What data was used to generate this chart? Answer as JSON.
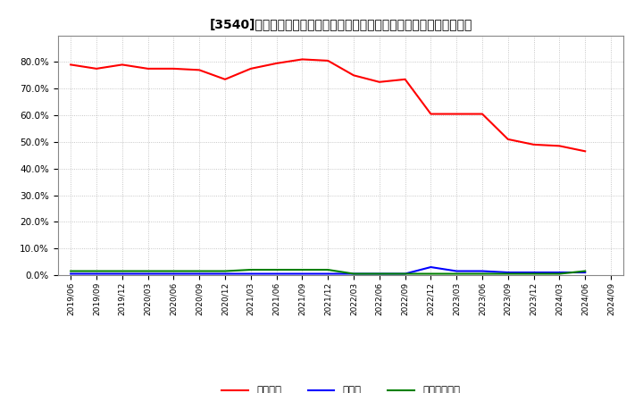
{
  "title": "[3540]　自己資本、のれん、繰延税金資産の総資産に対する比率の推移",
  "x_labels": [
    "2019/06",
    "2019/09",
    "2019/12",
    "2020/03",
    "2020/06",
    "2020/09",
    "2020/12",
    "2021/03",
    "2021/06",
    "2021/09",
    "2021/12",
    "2022/03",
    "2022/06",
    "2022/09",
    "2022/12",
    "2023/03",
    "2023/06",
    "2023/09",
    "2023/12",
    "2024/03",
    "2024/06",
    "2024/09"
  ],
  "equity_ratio": [
    79.0,
    77.5,
    79.0,
    77.5,
    77.5,
    77.0,
    73.5,
    77.5,
    79.5,
    81.0,
    80.5,
    75.0,
    72.5,
    73.5,
    60.5,
    60.5,
    60.5,
    51.0,
    49.0,
    48.5,
    46.5,
    null
  ],
  "noren_ratio": [
    0.5,
    0.5,
    0.5,
    0.5,
    0.5,
    0.5,
    0.5,
    0.5,
    0.5,
    0.5,
    0.5,
    0.5,
    0.5,
    0.5,
    3.0,
    1.5,
    1.5,
    1.0,
    1.0,
    1.0,
    1.0,
    null
  ],
  "deferred_tax_ratio": [
    1.5,
    1.5,
    1.5,
    1.5,
    1.5,
    1.5,
    1.5,
    2.0,
    2.0,
    2.0,
    2.0,
    0.5,
    0.5,
    0.5,
    0.5,
    0.5,
    0.5,
    0.5,
    0.5,
    0.5,
    1.5,
    null
  ],
  "equity_color": "#FF0000",
  "noren_color": "#0000FF",
  "deferred_tax_color": "#008000",
  "legend_labels": [
    "自己資本",
    "のれん",
    "繰延税金資産"
  ],
  "ylim": [
    0.0,
    90.0
  ],
  "yticks": [
    0.0,
    10.0,
    20.0,
    30.0,
    40.0,
    50.0,
    60.0,
    70.0,
    80.0
  ],
  "background_color": "#FFFFFF",
  "grid_color": "#999999"
}
